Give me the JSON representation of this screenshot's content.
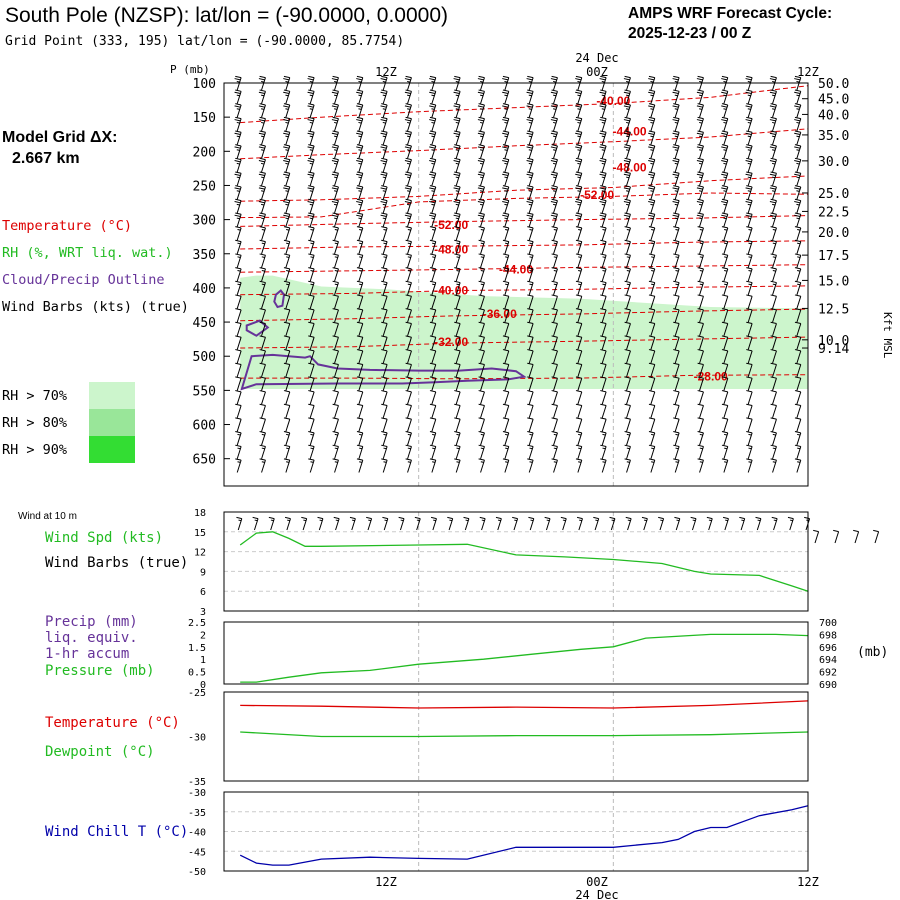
{
  "header": {
    "title": "South Pole (NZSP):  lat/lon = (-90.0000, 0.0000)",
    "subtitle": "Grid Point (333, 195) lat/lon = (-90.0000, 85.7754)",
    "cycle_line1": "AMPS WRF Forecast Cycle:",
    "cycle_line2": "2025-12-23 / 00  Z"
  },
  "model_grid": {
    "label": "Model Grid ΔX:",
    "value": "2.667 km"
  },
  "colors": {
    "temperature": "#dd0000",
    "rh": "#22bb22",
    "cloud": "#663399",
    "wind_chill": "#0000aa",
    "black": "#000000",
    "rh70": "#ccf5cc",
    "rh80": "#99e699",
    "rh90": "#33dd33"
  },
  "legend": {
    "temperature": "Temperature (°C)",
    "rh": "RH (%, WRT liq. wat.)",
    "cloud": "Cloud/Precip Outline",
    "wind": "Wind Barbs (kts) (true)",
    "rh70": "RH > 70%",
    "rh80": "RH > 80%",
    "rh90": "RH > 90%"
  },
  "time_axis": {
    "top_date": "24 Dec",
    "bottom_date": "24 Dec",
    "ticks": [
      "12Z",
      "00Z",
      "12Z"
    ],
    "tick_hours": [
      12,
      24,
      36
    ]
  },
  "chart_data": [
    {
      "type": "heatmap",
      "title": "Time-height cross section",
      "ylabel": "P (mb)",
      "y2label": "Kft MSL",
      "x_hours_range": [
        1,
        36
      ],
      "p_range": [
        100,
        690
      ],
      "pressure_ticks": [
        100,
        150,
        200,
        250,
        300,
        350,
        400,
        450,
        500,
        550,
        600,
        650
      ],
      "height_ticks": [
        {
          "label": "50.0",
          "p": 100
        },
        {
          "label": "45.0",
          "p": 123
        },
        {
          "label": "40.0",
          "p": 146
        },
        {
          "label": "35.0",
          "p": 176
        },
        {
          "label": "30.0",
          "p": 214
        },
        {
          "label": "25.0",
          "p": 261
        },
        {
          "label": "22.5",
          "p": 288
        },
        {
          "label": "20.0",
          "p": 318
        },
        {
          "label": "17.5",
          "p": 352
        },
        {
          "label": "15.0",
          "p": 389
        },
        {
          "label": "12.5",
          "p": 430
        },
        {
          "label": "10.0",
          "p": 476
        },
        {
          "label": "9.14",
          "p": 488
        }
      ],
      "temperature_contours": [
        {
          "label": "-40.00",
          "label_hour": 24,
          "label_p": 126,
          "points": [
            [
              1,
              158
            ],
            [
              6,
              150
            ],
            [
              12,
              142
            ],
            [
              18,
              136
            ],
            [
              24,
              130
            ],
            [
              30,
              121
            ],
            [
              36,
              104
            ]
          ]
        },
        {
          "label": "-44.00",
          "label_hour": 25,
          "label_p": 171,
          "points": [
            [
              1,
              211
            ],
            [
              6,
              205
            ],
            [
              12,
              199
            ],
            [
              18,
              192
            ],
            [
              24,
              186
            ],
            [
              30,
              179
            ],
            [
              36,
              167
            ]
          ]
        },
        {
          "label": "-48.00",
          "label_hour": 25,
          "label_p": 224,
          "points": [
            [
              1,
              273
            ],
            [
              6,
              271
            ],
            [
              12,
              266
            ],
            [
              18,
              257
            ],
            [
              24,
              253
            ],
            [
              30,
              243
            ],
            [
              36,
              236
            ]
          ]
        },
        {
          "label": "-52.00",
          "label_hour": 23,
          "label_p": 264,
          "points": [
            [
              1,
              297
            ],
            [
              6,
              296
            ],
            [
              12,
              274
            ],
            [
              18,
              269
            ],
            [
              24,
              266
            ],
            [
              30,
              261
            ],
            [
              36,
              263
            ]
          ]
        },
        {
          "label": "-52.00",
          "label_hour": 14,
          "label_p": 308,
          "points": [
            [
              1,
              310
            ],
            [
              8,
              306
            ],
            [
              14,
              303
            ],
            [
              22,
              300
            ],
            [
              29,
              298
            ],
            [
              36,
              294
            ]
          ]
        },
        {
          "label": "-48.00",
          "label_hour": 14,
          "label_p": 344,
          "points": [
            [
              1,
              343
            ],
            [
              8,
              340
            ],
            [
              14,
              339
            ],
            [
              22,
              337
            ],
            [
              29,
              333
            ],
            [
              36,
              331
            ]
          ]
        },
        {
          "label": "-44.00",
          "label_hour": 18,
          "label_p": 373,
          "points": [
            [
              1,
              377
            ],
            [
              8,
              375
            ],
            [
              14,
              373
            ],
            [
              22,
              370
            ],
            [
              29,
              368
            ],
            [
              36,
              366
            ]
          ]
        },
        {
          "label": "-40.00",
          "label_hour": 14,
          "label_p": 404,
          "points": [
            [
              1,
              410
            ],
            [
              8,
              408
            ],
            [
              14,
              404
            ],
            [
              22,
              402
            ],
            [
              29,
              399
            ],
            [
              36,
              397
            ]
          ]
        },
        {
          "label": "-36.00",
          "label_hour": 17,
          "label_p": 438,
          "points": [
            [
              1,
              448
            ],
            [
              8,
              445
            ],
            [
              14,
              441
            ],
            [
              22,
              438
            ],
            [
              29,
              434
            ],
            [
              36,
              431
            ]
          ]
        },
        {
          "label": "-32.00",
          "label_hour": 14,
          "label_p": 479,
          "points": [
            [
              1,
              488
            ],
            [
              8,
              486
            ],
            [
              14,
              481
            ],
            [
              22,
              478
            ],
            [
              29,
              475
            ],
            [
              36,
              472
            ]
          ]
        },
        {
          "label": "-28.00",
          "label_hour": 30,
          "label_p": 530,
          "points": [
            [
              1,
              532
            ],
            [
              8,
              532
            ],
            [
              14,
              533
            ],
            [
              22,
              532
            ],
            [
              29,
              528
            ],
            [
              36,
              527
            ]
          ]
        }
      ],
      "rh_regions": [
        {
          "level": "rh70",
          "points": [
            [
              1,
              385
            ],
            [
              2,
              382
            ],
            [
              3,
              382
            ],
            [
              6,
              398
            ],
            [
              10,
              402
            ],
            [
              16,
              412
            ],
            [
              22,
              416
            ],
            [
              30,
              428
            ],
            [
              36,
              430
            ],
            [
              36,
              548
            ],
            [
              30,
              548
            ],
            [
              20,
              548
            ],
            [
              10,
              548
            ],
            [
              1,
              548
            ]
          ]
        }
      ],
      "cloud_outlines": [
        {
          "points": [
            [
              3.2,
              410
            ],
            [
              3.5,
              404
            ],
            [
              3.7,
              410
            ],
            [
              3.6,
              426
            ],
            [
              3.3,
              428
            ],
            [
              3.1,
              420
            ]
          ]
        },
        {
          "points": [
            [
              1.4,
              455
            ],
            [
              2.2,
              448
            ],
            [
              2.7,
              458
            ],
            [
              2.0,
              470
            ],
            [
              1.4,
              462
            ]
          ]
        },
        {
          "points": [
            [
              1.1,
              548
            ],
            [
              1.7,
              500
            ],
            [
              3,
              498
            ],
            [
              5,
              502
            ],
            [
              5.3,
              500
            ],
            [
              5.8,
              512
            ],
            [
              7,
              518
            ],
            [
              9,
              520
            ],
            [
              12,
              521
            ],
            [
              13.5,
              521
            ],
            [
              14.5,
              521
            ],
            [
              16.5,
              518
            ],
            [
              18,
              522
            ],
            [
              18.5,
              530
            ],
            [
              17.5,
              534
            ],
            [
              15,
              536
            ],
            [
              13,
              538
            ],
            [
              11,
              540
            ],
            [
              7,
              540
            ],
            [
              2,
              541
            ],
            [
              1.1,
              548
            ]
          ]
        }
      ],
      "wind_barb_speed_scale": [
        [
          100,
          25
        ],
        [
          200,
          25
        ],
        [
          300,
          15
        ],
        [
          400,
          10
        ],
        [
          500,
          10
        ],
        [
          600,
          15
        ],
        [
          690,
          15
        ]
      ]
    },
    {
      "type": "line",
      "title": "Wind at 10 m",
      "ylabel": "Wind Spd (kts)",
      "ylim": [
        3,
        18
      ],
      "yticks": [
        3,
        6,
        9,
        12,
        15,
        18
      ],
      "series": [
        {
          "name": "Wind Spd (kts)",
          "x": [
            1,
            2,
            3,
            4,
            5,
            6,
            12,
            15,
            18,
            21,
            24,
            27,
            29,
            30,
            33,
            35,
            36
          ],
          "values": [
            13.0,
            14.8,
            15.0,
            14.0,
            12.8,
            12.8,
            13.0,
            13.1,
            11.5,
            11.2,
            10.8,
            10.2,
            9.0,
            8.6,
            8.4,
            6.8,
            6.0
          ]
        },
        {
          "name": "Wind Barbs (true)",
          "x": [
            1,
            36
          ],
          "values": [
            15,
            15
          ]
        }
      ]
    },
    {
      "type": "line",
      "title": "Precip / Pressure",
      "ylabel": "Precip (mm) liq. equiv. 1-hr accum",
      "ylim": [
        0,
        2.5
      ],
      "yticks": [
        0,
        0.5,
        1.0,
        1.5,
        2.0,
        2.5
      ],
      "y2label": "(mb)",
      "y2lim": [
        690,
        700
      ],
      "y2ticks": [
        690,
        692,
        694,
        696,
        698,
        700
      ],
      "series": [
        {
          "name": "Pressure (mb)",
          "axis": "right",
          "x": [
            1,
            2,
            4,
            6,
            9,
            12,
            16,
            19,
            22,
            24,
            26,
            30,
            34,
            36
          ],
          "values": [
            690.3,
            690.3,
            691.1,
            691.8,
            692.2,
            693.2,
            694.0,
            694.8,
            695.6,
            696.0,
            697.4,
            698.0,
            698.0,
            697.8
          ]
        }
      ]
    },
    {
      "type": "line",
      "title": "Temperature / Dewpoint",
      "ylim": [
        -35,
        -25
      ],
      "yticks": [
        -35,
        -30,
        -25
      ],
      "series": [
        {
          "name": "Temperature (°C)",
          "x": [
            1,
            6,
            12,
            18,
            24,
            30,
            36
          ],
          "values": [
            -26.5,
            -26.6,
            -26.8,
            -26.7,
            -26.8,
            -26.5,
            -26.0
          ]
        },
        {
          "name": "Dewpoint (°C)",
          "x": [
            1,
            6,
            12,
            18,
            24,
            30,
            36
          ],
          "values": [
            -29.5,
            -30.0,
            -30.0,
            -29.9,
            -29.9,
            -29.8,
            -29.5
          ]
        }
      ]
    },
    {
      "type": "line",
      "title": "Wind Chill",
      "ylim": [
        -50,
        -30
      ],
      "yticks": [
        -50,
        -45,
        -40,
        -35,
        -30
      ],
      "series": [
        {
          "name": "Wind Chill T (°C)",
          "x": [
            1,
            2,
            3,
            4,
            6,
            9,
            12,
            15,
            18,
            21,
            24,
            27,
            28,
            29,
            30,
            31,
            33,
            35,
            36
          ],
          "values": [
            -46,
            -48,
            -48.5,
            -48.5,
            -47,
            -46.5,
            -46.8,
            -47,
            -44,
            -44,
            -44,
            -42.8,
            -42,
            -40,
            -39,
            -39,
            -36,
            -34.5,
            -33.5
          ]
        }
      ]
    }
  ],
  "panels": {
    "wind_title": "Wind at 10 m",
    "wind_spd_label": "Wind Spd (kts)",
    "wind_barbs_label": "Wind Barbs (true)",
    "precip_line1": "Precip (mm)",
    "precip_line2": "liq. equiv.",
    "precip_line3": "1-hr accum",
    "pressure_label": "Pressure (mb)",
    "mb_unit": "(mb)",
    "temp_label": "Temperature (°C)",
    "dew_label": "Dewpoint (°C)",
    "chill_label": "Wind Chill T (°C)"
  }
}
